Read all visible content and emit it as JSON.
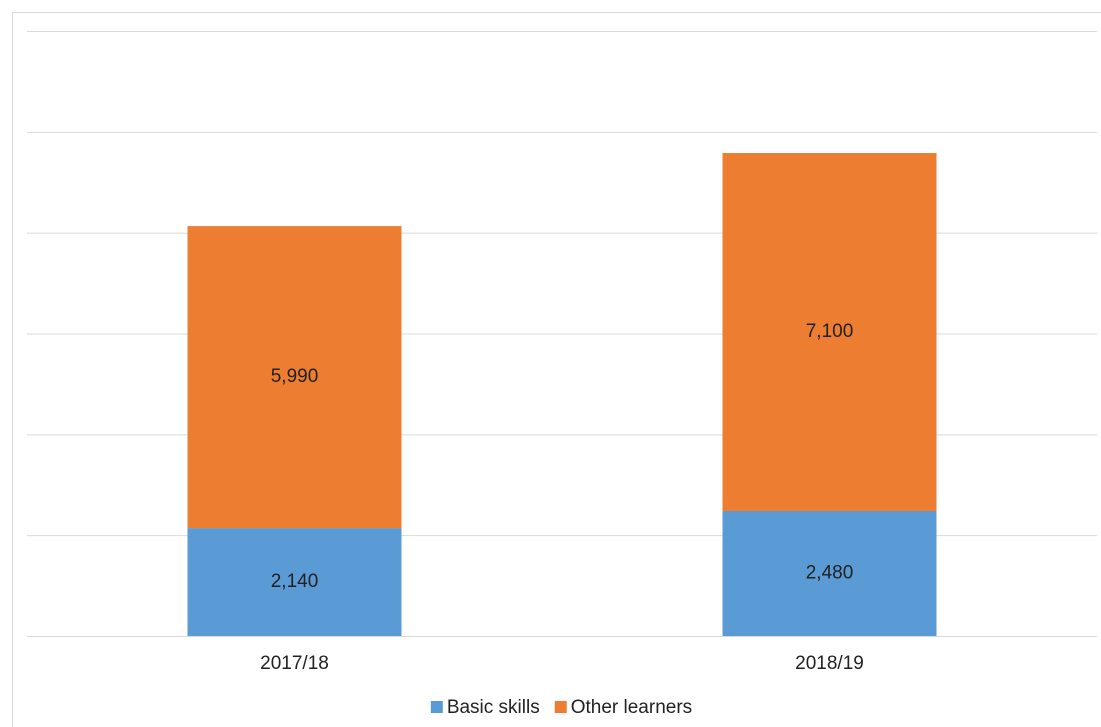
{
  "chart_data": {
    "type": "stacked_bar",
    "categories": [
      "2017/18",
      "2018/19"
    ],
    "series": [
      {
        "name": "Basic skills",
        "color": "#5b9bd5",
        "values": [
          2140,
          2480
        ],
        "value_labels": [
          "2,140",
          "2,480"
        ]
      },
      {
        "name": "Other learners",
        "color": "#ed7d31",
        "values": [
          5990,
          7100
        ],
        "value_labels": [
          "5,990",
          "7,100"
        ]
      }
    ],
    "ylim": [
      0,
      12000
    ],
    "yticks": [
      0,
      2000,
      4000,
      6000,
      8000,
      10000,
      12000
    ],
    "grid": true,
    "legend": "bottom"
  }
}
